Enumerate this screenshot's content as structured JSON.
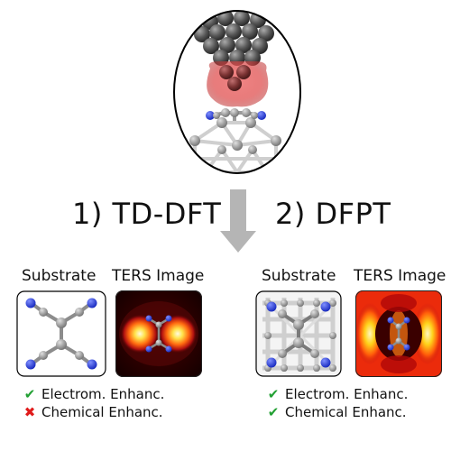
{
  "methods": {
    "left": "1) TD-DFT",
    "right": "2) DFPT"
  },
  "left_panel": {
    "substrate_label": "Substrate",
    "ters_label": "TERS Image",
    "checks": [
      {
        "mark": "✔",
        "text": "Electrom. Enhanc.",
        "ok": true
      },
      {
        "mark": "✖",
        "text": "Chemical Enhanc.",
        "ok": false
      }
    ]
  },
  "right_panel": {
    "substrate_label": "Substrate",
    "ters_label": "TERS Image",
    "checks": [
      {
        "mark": "✔",
        "text": "Electrom. Enhanc.",
        "ok": true
      },
      {
        "mark": "✔",
        "text": "Chemical Enhanc.",
        "ok": true
      }
    ]
  },
  "colors": {
    "arrow": "#b5b5b5",
    "carbon": "#8c8c8c",
    "nitrogen": "#2b3fd6",
    "tip_atom": "#5a5a5a",
    "apex_atom": "#8a3a3a",
    "plasmon_glow": "#e05050",
    "check_ok": "#22a033",
    "check_bad": "#e01b1b"
  }
}
